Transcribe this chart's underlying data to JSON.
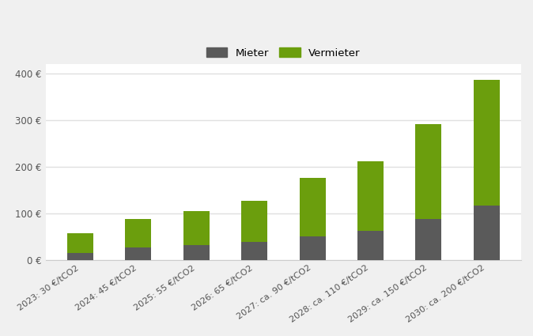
{
  "categories": [
    "2023: 30 €/tCO2",
    "2024: 45 €/tCO2",
    "2025: 55 €/tCO2",
    "2026: 65 €/tCO2",
    "2027: ca. 90 €/tCO2",
    "2028: ca. 110 €/tCO2",
    "2029: ca. 150 €/tCO2",
    "2030: ca. 200 €/tCO2"
  ],
  "mieter": [
    15,
    27,
    32,
    38,
    50,
    63,
    88,
    117
  ],
  "vermieter": [
    42,
    60,
    73,
    88,
    125,
    148,
    203,
    268
  ],
  "mieter_color": "#5a5a5a",
  "vermieter_color": "#6b9e0d",
  "plot_bg_color": "#ffffff",
  "fig_bg_color": "#f0f0f0",
  "grid_color": "#e0e0e0",
  "ylim": [
    0,
    420
  ],
  "yticks": [
    0,
    100,
    200,
    300,
    400
  ],
  "ytick_labels": [
    "0 €",
    "100 €",
    "200 €",
    "300 €",
    "400 €"
  ],
  "legend_mieter": "Mieter",
  "legend_vermieter": "Vermieter",
  "bar_width": 0.45,
  "tick_fontsize": 8.5,
  "legend_fontsize": 9.5
}
